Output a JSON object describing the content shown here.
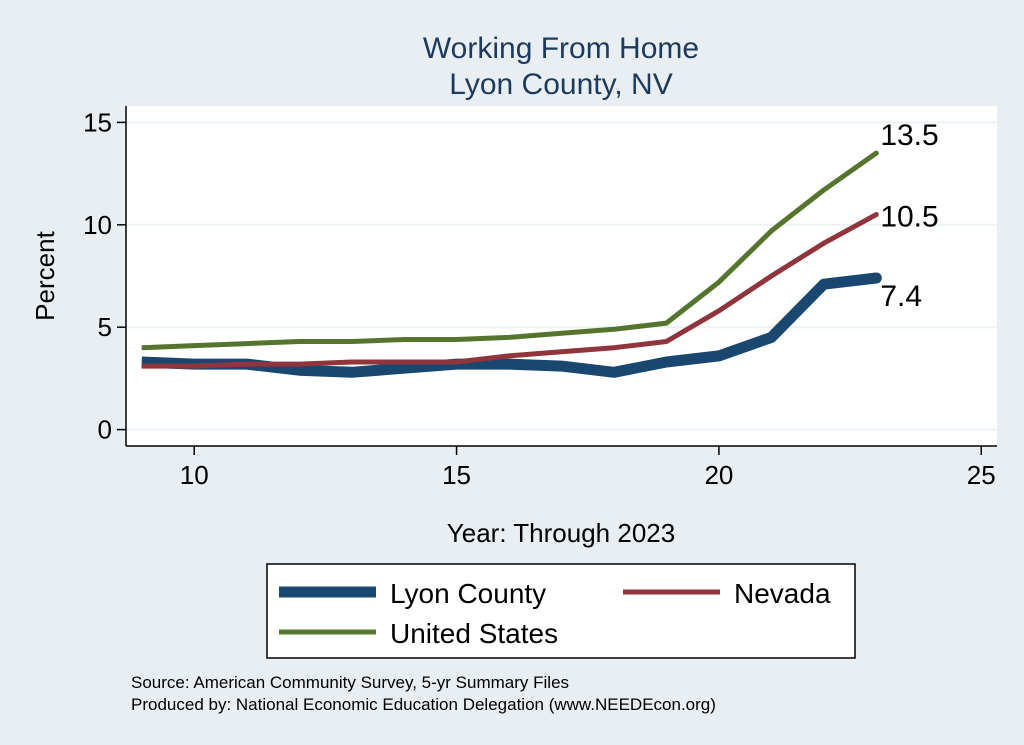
{
  "chart_data": {
    "type": "line",
    "title": "Working From Home",
    "subtitle": "Lyon County, NV",
    "xlabel": "Year: Through 2023",
    "ylabel": "Percent",
    "xlim": [
      8.7,
      25.3
    ],
    "ylim": [
      -0.8,
      15.8
    ],
    "xticks": [
      10,
      15,
      20,
      25
    ],
    "yticks": [
      0,
      5,
      10,
      15
    ],
    "grid": true,
    "legend_position": "bottom",
    "series": [
      {
        "name": "Lyon County",
        "color": "#1a476f",
        "x": [
          9,
          10,
          11,
          12,
          13,
          14,
          15,
          16,
          17,
          18,
          19,
          20,
          21,
          22,
          23
        ],
        "y": [
          3.3,
          3.2,
          3.2,
          2.9,
          2.8,
          3.0,
          3.2,
          3.2,
          3.1,
          2.8,
          3.3,
          3.6,
          4.5,
          7.1,
          7.4
        ],
        "end_label": "7.4"
      },
      {
        "name": "Nevada",
        "color": "#90353b",
        "x": [
          9,
          10,
          11,
          12,
          13,
          14,
          15,
          16,
          17,
          18,
          19,
          20,
          21,
          22,
          23
        ],
        "y": [
          3.1,
          3.1,
          3.2,
          3.2,
          3.3,
          3.3,
          3.3,
          3.6,
          3.8,
          4.0,
          4.3,
          5.8,
          7.5,
          9.1,
          10.5
        ],
        "end_label": "10.5"
      },
      {
        "name": "United States",
        "color": "#55752f",
        "x": [
          9,
          10,
          11,
          12,
          13,
          14,
          15,
          16,
          17,
          18,
          19,
          20,
          21,
          22,
          23
        ],
        "y": [
          4.0,
          4.1,
          4.2,
          4.3,
          4.3,
          4.4,
          4.4,
          4.5,
          4.7,
          4.9,
          5.2,
          7.2,
          9.7,
          11.7,
          13.5
        ],
        "end_label": "13.5"
      }
    ]
  },
  "notes": {
    "source": "Source: American Community Survey, 5-yr Summary Files",
    "produced_by": "Produced by: National Economic Education Delegation (www.NEEDEcon.org)"
  }
}
